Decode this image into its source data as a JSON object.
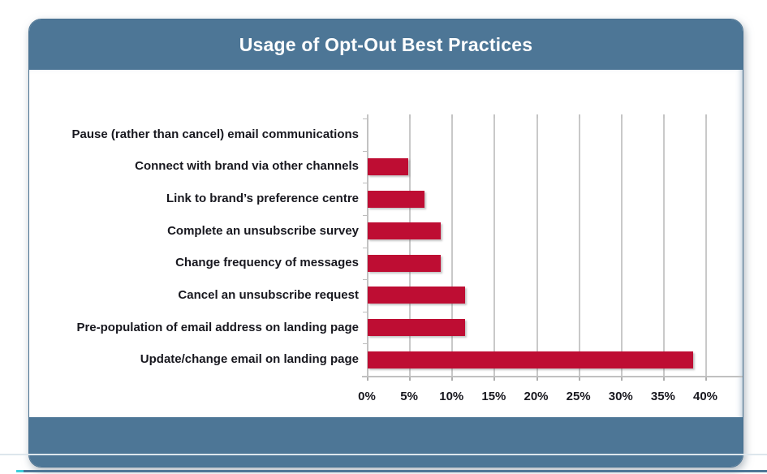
{
  "header": {
    "title": "Usage of Opt-Out Best Practices"
  },
  "chart_data": {
    "type": "bar",
    "orientation": "horizontal",
    "title": "Usage of Opt-Out Best Practices",
    "categories": [
      "Pause (rather than cancel) email communications",
      "Connect with brand via other channels",
      "Link to brand’s preference centre",
      "Complete an unsubscribe survey",
      "Change frequency of messages",
      "Cancel an unsubscribe request",
      "Pre-population of email address on landing page",
      "Update/change email on landing page"
    ],
    "values": [
      0,
      4.8,
      6.7,
      8.6,
      8.6,
      11.5,
      11.5,
      38.5
    ],
    "unit": "%",
    "xlim": [
      0,
      40
    ],
    "x_tick_step": 5,
    "x_tick_labels": [
      "0%",
      "5%",
      "10%",
      "15%",
      "20%",
      "25%",
      "30%",
      "35%",
      "40%"
    ],
    "grid": true,
    "legend": false,
    "xlabel": "",
    "ylabel": ""
  },
  "colors": {
    "header_bg": "#4d7696",
    "footer_bg": "#4d7696",
    "bar": "#be0d33",
    "gridline": "#c9c9c9",
    "axis_text": "#18181f",
    "title_text": "#ffffff",
    "bottom_accent": "#4d7696",
    "bottom_accent_cyan": "#3ecfdb"
  }
}
